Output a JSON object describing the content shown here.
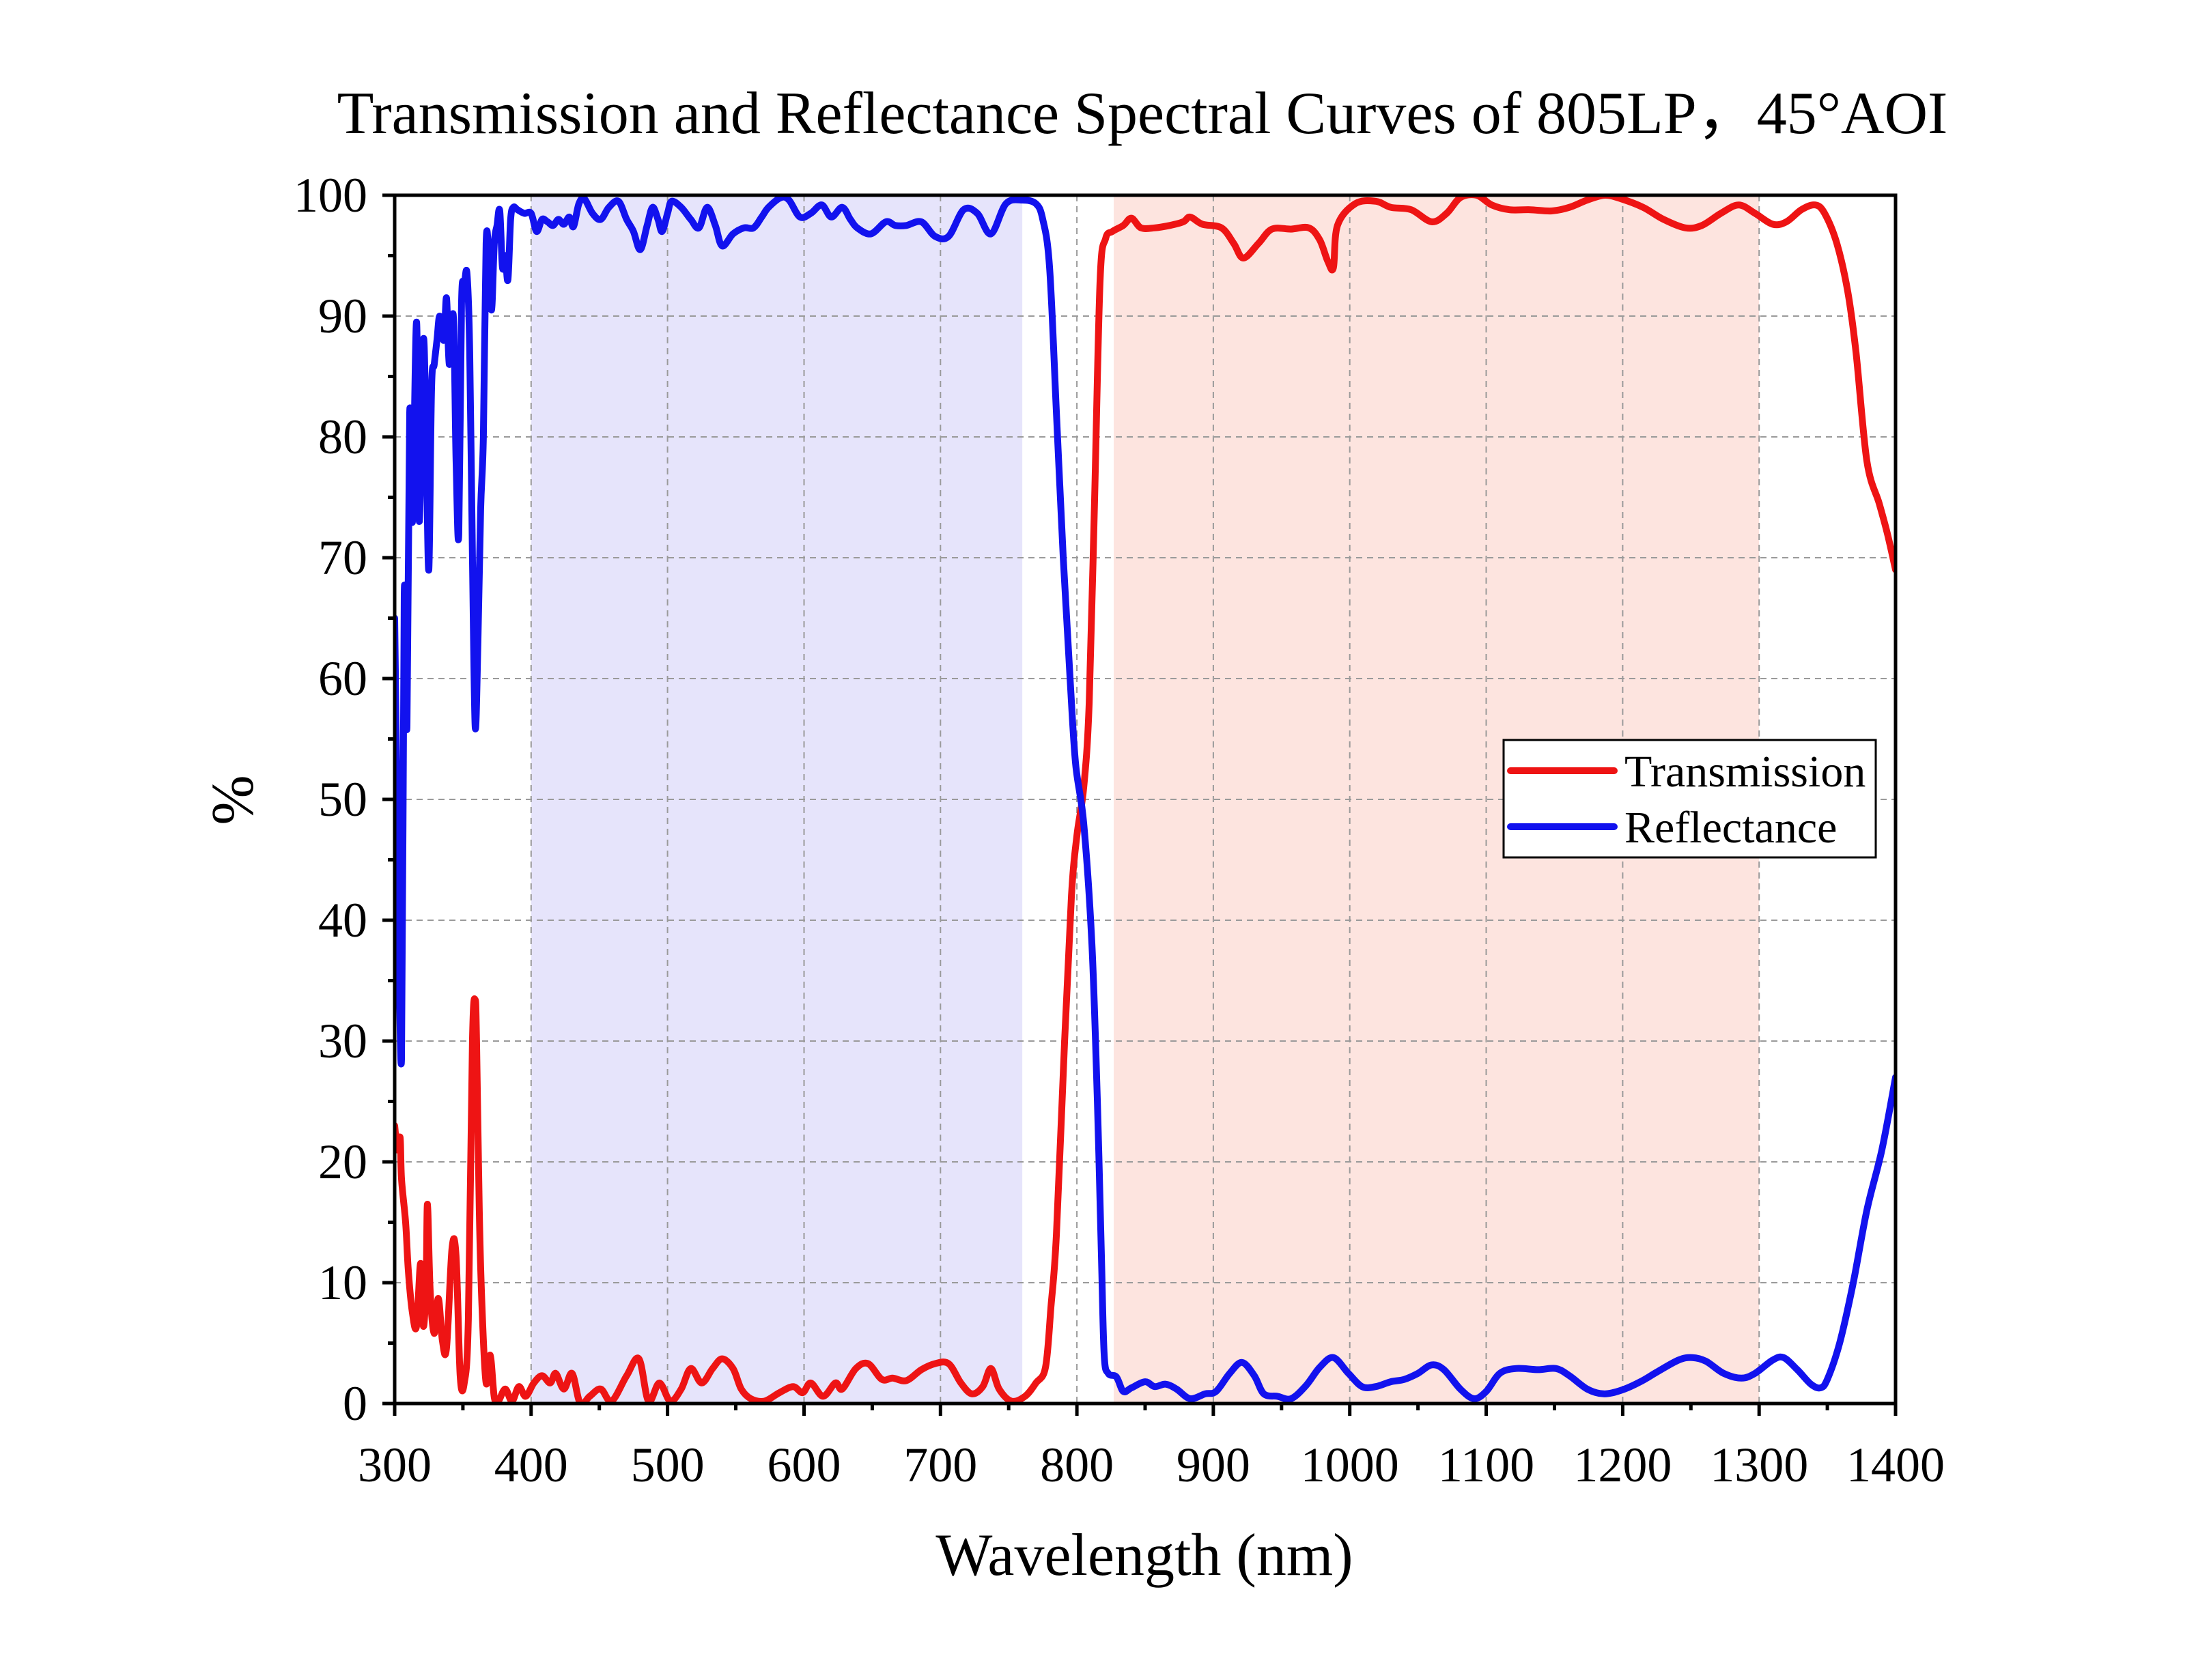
{
  "chart_data": {
    "type": "line",
    "title": "Transmission and Reflectance Spectral Curves of 805LP，45°AOI",
    "xlabel": "Wavelength (nm)",
    "ylabel": "%",
    "xlim": [
      300,
      1400
    ],
    "ylim": [
      0,
      100
    ],
    "x_ticks": [
      300,
      400,
      500,
      600,
      700,
      800,
      900,
      1000,
      1100,
      1200,
      1300,
      1400
    ],
    "y_ticks": [
      0,
      10,
      20,
      30,
      40,
      50,
      60,
      70,
      80,
      90,
      100
    ],
    "grid": true,
    "legend_position": "right",
    "bands": [
      {
        "range": [
          400,
          760
        ],
        "color": "#e6e4fb"
      },
      {
        "range": [
          827,
          1300
        ],
        "color": "#fde4df"
      }
    ],
    "series": [
      {
        "name": "Transmission",
        "color": "#ee1414",
        "x": [
          300,
          302,
          304,
          305,
          308,
          310,
          313,
          316,
          319,
          321,
          323,
          324,
          326,
          329,
          332,
          335,
          338,
          342,
          345,
          348,
          351,
          354,
          357,
          359,
          360,
          362,
          364,
          367,
          370,
          373,
          376,
          381,
          386,
          391,
          396,
          402,
          408,
          414,
          418,
          424,
          430,
          436,
          443,
          451,
          459,
          470,
          479,
          486,
          494,
          502,
          510,
          517,
          525,
          533,
          540,
          548,
          554,
          561,
          571,
          582,
          592,
          599,
          605,
          614,
          623,
          628,
          638,
          647,
          657,
          665,
          675,
          686,
          696,
          706,
          715,
          723,
          731,
          737,
          743,
          752,
          762,
          770,
          777,
          781,
          785,
          791,
          796,
          800,
          805,
          809,
          813,
          817,
          821,
          826,
          834,
          840,
          847,
          857,
          868,
          878,
          883,
          892,
          906,
          915,
          922,
          933,
          943,
          957,
          970,
          978,
          984,
          988,
          991,
          1004,
          1019,
          1030,
          1045,
          1060,
          1071,
          1081,
          1093,
          1104,
          1117,
          1132,
          1148,
          1161,
          1174,
          1187,
          1199,
          1215,
          1230,
          1246,
          1258,
          1272,
          1285,
          1297,
          1310,
          1320,
          1331,
          1341,
          1348,
          1357,
          1365,
          1371,
          1379,
          1388,
          1394,
          1400
        ],
        "y": [
          23,
          21,
          22,
          18.6,
          15,
          11,
          7.5,
          6.4,
          11.6,
          6.4,
          10,
          16.5,
          9.3,
          5.8,
          8.7,
          5.2,
          4.6,
          12.8,
          12.2,
          2.3,
          1.7,
          7,
          30,
          33.4,
          30,
          16,
          8,
          1.7,
          4,
          0.5,
          0.2,
          1.2,
          0.2,
          1.4,
          0.6,
          1.7,
          2.3,
          1.7,
          2.5,
          1.2,
          2.5,
          0,
          0.6,
          1.2,
          0.2,
          2.3,
          3.7,
          0.2,
          1.7,
          0.2,
          1.2,
          2.9,
          1.7,
          2.9,
          3.7,
          2.9,
          1.2,
          0.4,
          0.2,
          0.9,
          1.4,
          0.9,
          1.7,
          0.6,
          1.7,
          1.2,
          2.9,
          3.3,
          2,
          2.1,
          1.9,
          2.8,
          3.3,
          3.3,
          1.7,
          0.8,
          1.4,
          2.9,
          1.2,
          0.2,
          0.6,
          1.7,
          3,
          8,
          14,
          30,
          42,
          47,
          51,
          58,
          75,
          93,
          96.4,
          97,
          97.5,
          98.1,
          97.3,
          97.3,
          97.5,
          97.8,
          98.2,
          97.6,
          97.3,
          96,
          94.8,
          96,
          97.2,
          97.2,
          97.3,
          96.3,
          94.5,
          94,
          97.5,
          99.3,
          99.5,
          99,
          98.8,
          97.8,
          98.5,
          99.8,
          100,
          99.2,
          98.8,
          98.8,
          98.7,
          99,
          99.6,
          100,
          99.7,
          99,
          98,
          97.3,
          97.5,
          98.5,
          99.2,
          98.5,
          97.6,
          97.8,
          98.8,
          99.2,
          98.5,
          96,
          92,
          87,
          78,
          74.5,
          72,
          69
        ]
      },
      {
        "name": "Reflectance",
        "color": "#1212ee",
        "x": [
          300,
          302,
          305,
          307,
          309,
          311,
          313,
          316,
          318,
          321,
          323,
          325,
          327,
          329,
          331,
          333,
          336,
          338,
          340,
          343,
          345,
          347,
          349,
          351,
          353,
          355,
          357,
          359,
          361,
          363,
          365,
          367,
          369,
          371,
          373,
          375,
          377,
          379,
          381,
          383,
          385,
          387,
          390,
          395,
          400,
          404,
          408,
          412,
          416,
          420,
          424,
          428,
          431,
          435,
          439,
          445,
          451,
          457,
          464,
          470,
          475,
          480,
          485,
          489,
          493,
          496,
          500,
          503,
          510,
          517,
          523,
          529,
          535,
          540,
          548,
          556,
          563,
          569,
          574,
          583,
          589,
          597,
          605,
          613,
          620,
          628,
          634,
          639,
          649,
          660,
          667,
          675,
          686,
          696,
          706,
          717,
          727,
          737,
          748,
          760,
          770,
          775,
          780,
          785,
          790,
          795,
          799,
          805,
          811,
          815,
          818,
          820,
          823,
          829,
          834,
          840,
          850,
          857,
          865,
          873,
          883,
          894,
          902,
          912,
          921,
          930,
          937,
          947,
          957,
          968,
          978,
          988,
          999,
          1009,
          1019,
          1030,
          1040,
          1050,
          1060,
          1069,
          1081,
          1091,
          1100,
          1110,
          1122,
          1138,
          1151,
          1161,
          1174,
          1186,
          1199,
          1213,
          1225,
          1241,
          1251,
          1261,
          1274,
          1287,
          1297,
          1310,
          1318,
          1328,
          1338,
          1345,
          1350,
          1359,
          1369,
          1379,
          1390,
          1400
        ],
        "y": [
          65,
          48,
          28.5,
          67,
          56,
          82,
          73,
          89.5,
          73,
          88,
          80,
          69,
          84,
          86,
          88,
          90,
          88,
          91.5,
          86,
          90,
          78,
          72,
          91,
          92.5,
          93.5,
          87,
          70,
          56,
          63,
          74,
          80,
          96,
          95,
          90.5,
          96,
          97.5,
          98.7,
          94,
          95,
          93,
          98,
          99,
          98.8,
          98.5,
          98.5,
          97,
          98,
          97.8,
          97.5,
          98,
          97.6,
          98.2,
          97.4,
          99.3,
          99.7,
          98.5,
          98,
          99,
          99.5,
          98,
          97,
          95.5,
          97.5,
          99,
          98,
          97,
          98.5,
          99.5,
          99,
          98,
          97.3,
          99,
          97.5,
          95.8,
          96.8,
          97.3,
          97.3,
          98.2,
          99,
          99.8,
          99.6,
          98.2,
          98.5,
          99.2,
          98.2,
          99,
          98,
          97.3,
          96.8,
          97.8,
          97.5,
          97.5,
          97.8,
          96.6,
          96.6,
          98.8,
          98.5,
          96.8,
          99.3,
          99.6,
          99.3,
          98,
          94,
          82,
          70,
          60,
          53,
          48,
          38,
          25,
          12,
          4,
          2.5,
          2.2,
          1,
          1.3,
          1.8,
          1.4,
          1.6,
          1.2,
          0.4,
          0.8,
          1,
          2.5,
          3.4,
          2.3,
          0.8,
          0.6,
          0.4,
          1.5,
          3,
          3.8,
          2.5,
          1.4,
          1.4,
          1.8,
          2,
          2.5,
          3.2,
          2.8,
          1.2,
          0.4,
          1,
          2.5,
          2.9,
          2.8,
          2.9,
          2.3,
          1.2,
          0.8,
          1.1,
          1.8,
          2.6,
          3.6,
          3.8,
          3.5,
          2.5,
          2.1,
          2.5,
          3.6,
          3.8,
          2.8,
          1.6,
          1.3,
          2,
          5,
          10,
          16,
          21,
          27
        ]
      }
    ]
  }
}
